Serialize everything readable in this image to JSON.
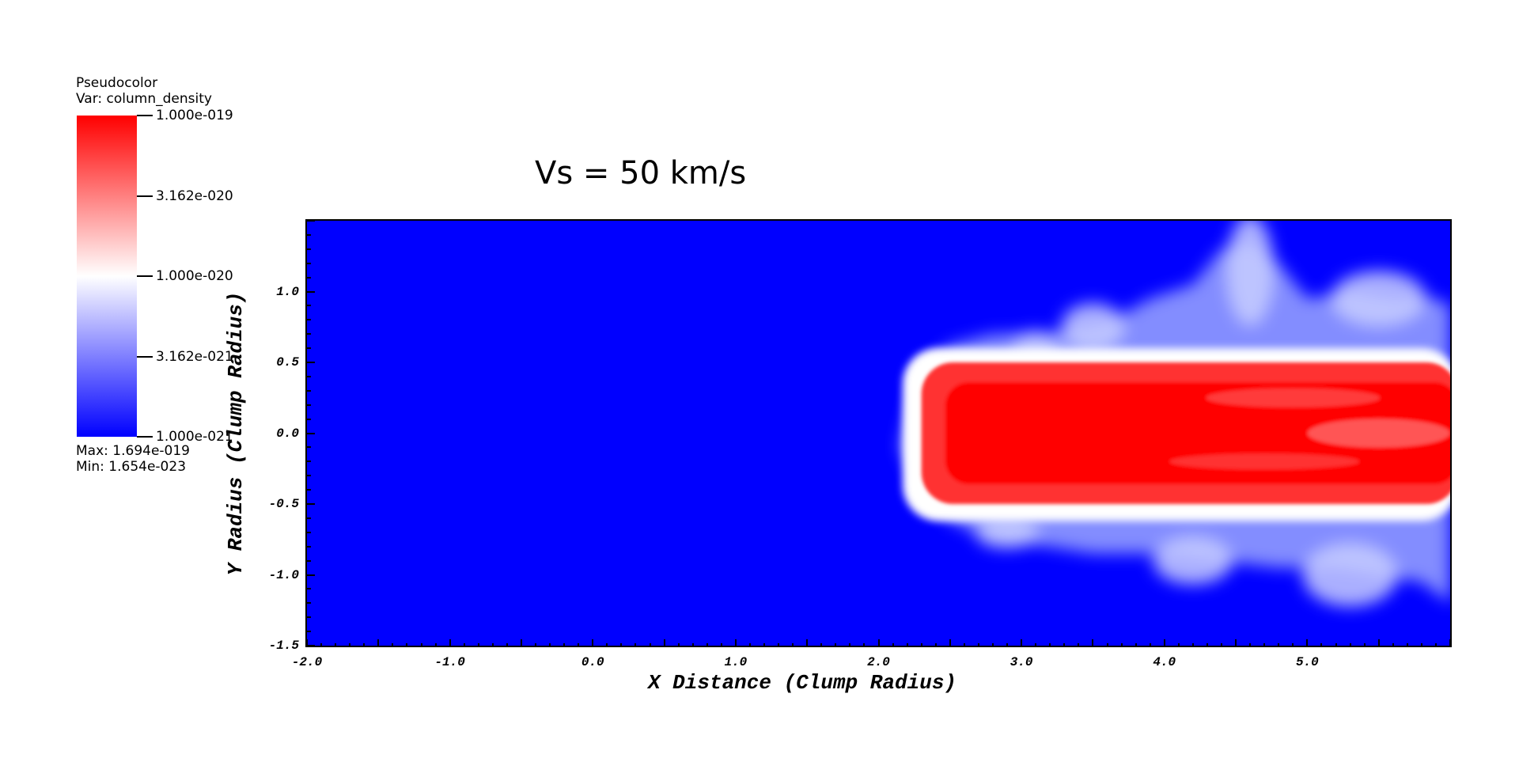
{
  "legend": {
    "plot_type": "Pseudocolor",
    "var_label": "Var: column_density",
    "ticks": [
      "1.000e-019",
      "3.162e-020",
      "1.000e-020",
      "3.162e-021",
      "1.000e-021"
    ],
    "max_label": "Max:  1.694e-019",
    "min_label": "Min:  1.654e-023",
    "colors": {
      "high": "#ff0000",
      "mid": "#ffffff",
      "low": "#0000ff"
    }
  },
  "chart_data": {
    "type": "heatmap",
    "title": "Vs = 50 km/s",
    "xlabel": "X Distance (Clump Radius)",
    "ylabel": "Y Radius (Clump Radius)",
    "xlim": [
      -2.0,
      6.0
    ],
    "ylim": [
      -1.5,
      1.5
    ],
    "x_ticks": [
      "-2.0",
      "-1.0",
      "0.0",
      "1.0",
      "2.0",
      "3.0",
      "4.0",
      "5.0"
    ],
    "x_tick_values": [
      -2.0,
      -1.0,
      0.0,
      1.0,
      2.0,
      3.0,
      4.0,
      5.0
    ],
    "y_ticks": [
      "1.0",
      "0.5",
      "0.0",
      "-0.5",
      "-1.0",
      "-1.5"
    ],
    "y_tick_values": [
      1.0,
      0.5,
      0.0,
      -0.5,
      -1.0,
      -1.5
    ],
    "colorbar": {
      "scale": "log",
      "min": 1e-21,
      "max": 1e-19,
      "colors": [
        "#0000ff",
        "#ffffff",
        "#ff0000"
      ]
    },
    "features": {
      "background_color": "#0000ff",
      "dense_clump": {
        "x_range": [
          2.3,
          6.0
        ],
        "y_range": [
          -0.5,
          0.5
        ],
        "color": "#ff0000"
      },
      "diffuse_halo": {
        "x_range": [
          2.1,
          6.0
        ],
        "y_range": [
          -1.2,
          1.45
        ],
        "color": "#ffffff"
      }
    }
  }
}
